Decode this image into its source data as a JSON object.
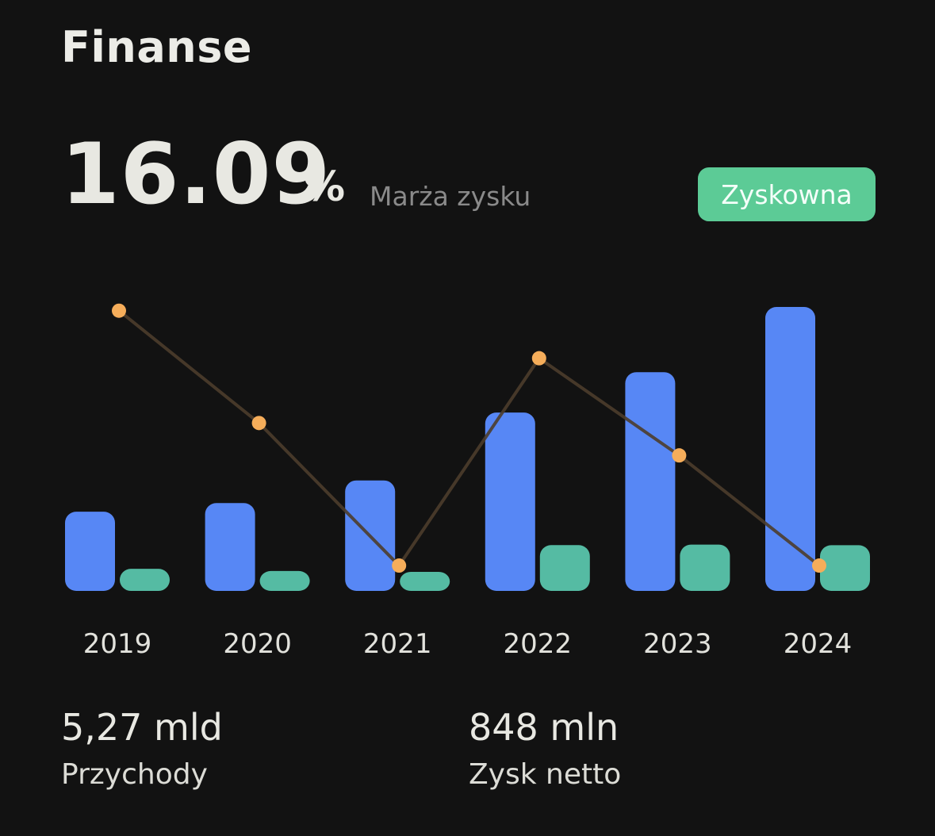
{
  "header": {
    "title": "Finanse"
  },
  "summary": {
    "margin_value": "16.09",
    "margin_unit": "%",
    "margin_label": "Marża zysku",
    "badge": "Zyskowna"
  },
  "stats": {
    "revenue_value": "5,27 mld",
    "revenue_label": "Przychody",
    "net_value": "848 mln",
    "net_label": "Zysk netto"
  },
  "colors": {
    "background": "#121212",
    "revenue": "#5787f5",
    "net_income": "#55bba3",
    "margin_point": "#f5ad5a",
    "margin_line": "#4d3d2c",
    "badge": "#5ccb96"
  },
  "chart_data": {
    "type": "bar",
    "categories": [
      "2019",
      "2020",
      "2021",
      "2022",
      "2023",
      "2024"
    ],
    "series": [
      {
        "key": "revenue",
        "type": "bar",
        "values": [
          1.47,
          1.63,
          2.05,
          3.31,
          4.06,
          5.27
        ]
      },
      {
        "key": "net_income",
        "type": "bar",
        "values": [
          0.41,
          0.37,
          0.33,
          0.85,
          0.86,
          0.848
        ]
      },
      {
        "key": "profit_margin",
        "type": "line",
        "values": [
          27.9,
          22.7,
          16.1,
          25.7,
          21.2,
          16.1
        ]
      }
    ],
    "ylim_bars": [
      0,
      5.27
    ],
    "ylim_line": [
      15,
      28
    ],
    "grid": false,
    "legend": "none",
    "title": "",
    "xlabel": "",
    "ylabel": ""
  }
}
